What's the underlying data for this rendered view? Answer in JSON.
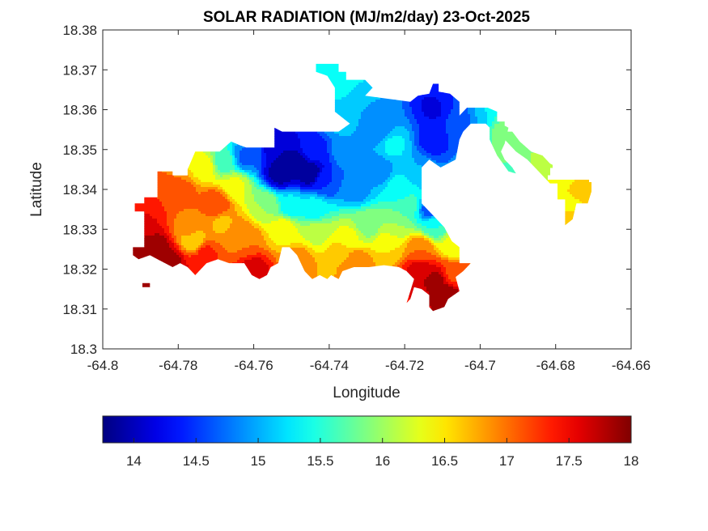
{
  "chart_data": {
    "type": "heatmap",
    "subtype": "filled-contour-map",
    "title": "SOLAR RADIATION (MJ/m2/day) 23-Oct-2025",
    "xlabel": "Longitude",
    "ylabel": "Latitude",
    "xlim": [
      -64.8,
      -64.66
    ],
    "ylim": [
      18.3,
      18.38
    ],
    "xticks": [
      -64.8,
      -64.78,
      -64.76,
      -64.74,
      -64.72,
      -64.7,
      -64.68,
      -64.66
    ],
    "xtick_labels": [
      "-64.8",
      "-64.78",
      "-64.76",
      "-64.74",
      "-64.72",
      "-64.7",
      "-64.68",
      "-64.66"
    ],
    "yticks": [
      18.3,
      18.31,
      18.32,
      18.33,
      18.34,
      18.35,
      18.36,
      18.37,
      18.38
    ],
    "ytick_labels": [
      "18.3",
      "18.31",
      "18.32",
      "18.33",
      "18.34",
      "18.35",
      "18.36",
      "18.37",
      "18.38"
    ],
    "grid": false,
    "colormap": "jet",
    "colorbar": {
      "placement": "bottom",
      "clim": [
        13.75,
        18
      ],
      "ticks": [
        14,
        14.5,
        15,
        15.5,
        16,
        16.5,
        17,
        17.5,
        18
      ],
      "tick_labels": [
        "14",
        "14.5",
        "15",
        "15.5",
        "16",
        "16.5",
        "17",
        "17.5",
        "18"
      ]
    },
    "contour_levels": 17,
    "land_mask_polygons": [
      {
        "name": "main-island",
        "lonlat": [
          [
            -64.792,
            18.3235
          ],
          [
            -64.792,
            18.3255
          ],
          [
            -64.789,
            18.3255
          ],
          [
            -64.789,
            18.3345
          ],
          [
            -64.7915,
            18.3345
          ],
          [
            -64.7915,
            18.3365
          ],
          [
            -64.789,
            18.3365
          ],
          [
            -64.789,
            18.338
          ],
          [
            -64.7855,
            18.338
          ],
          [
            -64.7855,
            18.3445
          ],
          [
            -64.7815,
            18.3445
          ],
          [
            -64.7815,
            18.3435
          ],
          [
            -64.7775,
            18.3435
          ],
          [
            -64.7775,
            18.345
          ],
          [
            -64.7755,
            18.3495
          ],
          [
            -64.769,
            18.3495
          ],
          [
            -64.766,
            18.352
          ],
          [
            -64.7635,
            18.351
          ],
          [
            -64.762,
            18.3505
          ],
          [
            -64.7545,
            18.3505
          ],
          [
            -64.7545,
            18.3555
          ],
          [
            -64.7525,
            18.3545
          ],
          [
            -64.7445,
            18.3545
          ],
          [
            -64.7375,
            18.3545
          ],
          [
            -64.7345,
            18.3565
          ],
          [
            -64.7385,
            18.3595
          ],
          [
            -64.7385,
            18.3655
          ],
          [
            -64.7405,
            18.3685
          ],
          [
            -64.7435,
            18.3695
          ],
          [
            -64.7435,
            18.3715
          ],
          [
            -64.7375,
            18.3715
          ],
          [
            -64.7375,
            18.3695
          ],
          [
            -64.7355,
            18.3695
          ],
          [
            -64.7355,
            18.3675
          ],
          [
            -64.7305,
            18.3675
          ],
          [
            -64.7285,
            18.3655
          ],
          [
            -64.7305,
            18.3635
          ],
          [
            -64.7185,
            18.362
          ],
          [
            -64.7165,
            18.3635
          ],
          [
            -64.7135,
            18.364
          ],
          [
            -64.7125,
            18.3665
          ],
          [
            -64.711,
            18.3665
          ],
          [
            -64.711,
            18.3645
          ],
          [
            -64.708,
            18.364
          ],
          [
            -64.7055,
            18.362
          ],
          [
            -64.7055,
            18.3585
          ],
          [
            -64.7035,
            18.3605
          ],
          [
            -64.698,
            18.3605
          ],
          [
            -64.6955,
            18.3595
          ],
          [
            -64.6955,
            18.357
          ],
          [
            -64.6935,
            18.357
          ],
          [
            -64.6935,
            18.3545
          ],
          [
            -64.6915,
            18.3545
          ],
          [
            -64.6895,
            18.352
          ],
          [
            -64.6865,
            18.3495
          ],
          [
            -64.6835,
            18.3485
          ],
          [
            -64.6815,
            18.3465
          ],
          [
            -64.6795,
            18.3455
          ],
          [
            -64.6745,
            18.3455
          ],
          [
            -64.6725,
            18.3475
          ],
          [
            -64.671,
            18.3475
          ],
          [
            -64.671,
            18.3455
          ],
          [
            -64.669,
            18.343
          ],
          [
            -64.6665,
            18.343
          ],
          [
            -64.6665,
            18.3395
          ],
          [
            -64.6705,
            18.3395
          ],
          [
            -64.6715,
            18.3365
          ],
          [
            -64.6745,
            18.3365
          ],
          [
            -64.6755,
            18.3325
          ],
          [
            -64.6775,
            18.331
          ],
          [
            -64.6775,
            18.3375
          ],
          [
            -64.6795,
            18.3375
          ],
          [
            -64.6795,
            18.3415
          ],
          [
            -64.6815,
            18.3415
          ],
          [
            -64.6845,
            18.3445
          ],
          [
            -64.6875,
            18.3475
          ],
          [
            -64.6905,
            18.3495
          ],
          [
            -64.6935,
            18.3525
          ],
          [
            -64.6965,
            18.3545
          ],
          [
            -64.6985,
            18.3565
          ],
          [
            -64.7025,
            18.3565
          ],
          [
            -64.7045,
            18.3545
          ],
          [
            -64.7055,
            18.3525
          ],
          [
            -64.7065,
            18.3475
          ],
          [
            -64.7105,
            18.3455
          ],
          [
            -64.7135,
            18.3475
          ],
          [
            -64.7155,
            18.3455
          ],
          [
            -64.7155,
            18.3365
          ],
          [
            -64.7135,
            18.3345
          ],
          [
            -64.7115,
            18.3325
          ],
          [
            -64.7095,
            18.3305
          ],
          [
            -64.7075,
            18.327
          ],
          [
            -64.7055,
            18.3255
          ],
          [
            -64.7055,
            18.3215
          ],
          [
            -64.7025,
            18.3215
          ],
          [
            -64.7045,
            18.3195
          ],
          [
            -64.7065,
            18.318
          ],
          [
            -64.7055,
            18.3145
          ],
          [
            -64.7085,
            18.3125
          ],
          [
            -64.7095,
            18.3105
          ],
          [
            -64.7125,
            18.3095
          ],
          [
            -64.7135,
            18.3105
          ],
          [
            -64.7135,
            18.3135
          ],
          [
            -64.7155,
            18.315
          ],
          [
            -64.7175,
            18.3155
          ],
          [
            -64.7185,
            18.3125
          ],
          [
            -64.7195,
            18.3115
          ],
          [
            -64.7175,
            18.3175
          ],
          [
            -64.7195,
            18.3195
          ],
          [
            -64.7215,
            18.3205
          ],
          [
            -64.7255,
            18.321
          ],
          [
            -64.7295,
            18.3205
          ],
          [
            -64.7335,
            18.3205
          ],
          [
            -64.7365,
            18.3195
          ],
          [
            -64.7375,
            18.3175
          ],
          [
            -64.7395,
            18.3185
          ],
          [
            -64.7405,
            18.3175
          ],
          [
            -64.7425,
            18.3185
          ],
          [
            -64.7445,
            18.3175
          ],
          [
            -64.7465,
            18.3195
          ],
          [
            -64.7485,
            18.3235
          ],
          [
            -64.7505,
            18.3255
          ],
          [
            -64.7525,
            18.3255
          ],
          [
            -64.7535,
            18.3215
          ],
          [
            -64.7555,
            18.3205
          ],
          [
            -64.7565,
            18.3185
          ],
          [
            -64.7585,
            18.3175
          ],
          [
            -64.7605,
            18.3185
          ],
          [
            -64.7625,
            18.3215
          ],
          [
            -64.7645,
            18.3215
          ],
          [
            -64.7665,
            18.3215
          ],
          [
            -64.7695,
            18.3225
          ],
          [
            -64.7725,
            18.3215
          ],
          [
            -64.7745,
            18.3195
          ],
          [
            -64.7755,
            18.3185
          ],
          [
            -64.7775,
            18.3205
          ],
          [
            -64.7795,
            18.3215
          ],
          [
            -64.7815,
            18.3205
          ],
          [
            -64.7835,
            18.3215
          ],
          [
            -64.7855,
            18.3225
          ],
          [
            -64.7875,
            18.3235
          ],
          [
            -64.7905,
            18.3225
          ]
        ]
      },
      {
        "name": "small-islet",
        "lonlat": [
          [
            -64.7895,
            18.3165
          ],
          [
            -64.7875,
            18.3165
          ],
          [
            -64.7875,
            18.3155
          ],
          [
            -64.7895,
            18.3155
          ]
        ]
      },
      {
        "name": "north-spur",
        "lonlat": [
          [
            -64.6955,
            18.357
          ],
          [
            -64.6925,
            18.3555
          ],
          [
            -64.6935,
            18.3515
          ],
          [
            -64.6945,
            18.3495
          ],
          [
            -64.6935,
            18.3475
          ],
          [
            -64.6915,
            18.3455
          ],
          [
            -64.6905,
            18.344
          ],
          [
            -64.6925,
            18.3445
          ],
          [
            -64.6955,
            18.3485
          ],
          [
            -64.6975,
            18.3525
          ],
          [
            -64.6975,
            18.356
          ]
        ]
      }
    ],
    "field_samples": [
      {
        "lon": -64.79,
        "lat": 18.322,
        "value": 18.0
      },
      {
        "lon": -64.786,
        "lat": 18.325,
        "value": 17.95
      },
      {
        "lon": -64.782,
        "lat": 18.322,
        "value": 17.85
      },
      {
        "lon": -64.789,
        "lat": 18.332,
        "value": 17.6
      },
      {
        "lon": -64.787,
        "lat": 18.336,
        "value": 17.3
      },
      {
        "lon": -64.783,
        "lat": 18.34,
        "value": 17.0
      },
      {
        "lon": -64.779,
        "lat": 18.339,
        "value": 17.1
      },
      {
        "lon": -64.777,
        "lat": 18.33,
        "value": 16.8
      },
      {
        "lon": -64.776,
        "lat": 18.327,
        "value": 16.55
      },
      {
        "lon": -64.773,
        "lat": 18.324,
        "value": 17.3
      },
      {
        "lon": -64.775,
        "lat": 18.3205,
        "value": 17.5
      },
      {
        "lon": -64.77,
        "lat": 18.3365,
        "value": 17.25
      },
      {
        "lon": -64.773,
        "lat": 18.3455,
        "value": 16.4
      },
      {
        "lon": -64.768,
        "lat": 18.331,
        "value": 16.7
      },
      {
        "lon": -64.765,
        "lat": 18.329,
        "value": 16.9
      },
      {
        "lon": -64.76,
        "lat": 18.32,
        "value": 17.6
      },
      {
        "lon": -64.762,
        "lat": 18.327,
        "value": 17.0
      },
      {
        "lon": -64.765,
        "lat": 18.341,
        "value": 16.3
      },
      {
        "lon": -64.768,
        "lat": 18.347,
        "value": 15.6
      },
      {
        "lon": -64.762,
        "lat": 18.348,
        "value": 14.7
      },
      {
        "lon": -64.757,
        "lat": 18.336,
        "value": 16.0
      },
      {
        "lon": -64.753,
        "lat": 18.344,
        "value": 13.9
      },
      {
        "lon": -64.749,
        "lat": 18.346,
        "value": 13.8
      },
      {
        "lon": -64.745,
        "lat": 18.344,
        "value": 13.85
      },
      {
        "lon": -64.753,
        "lat": 18.35,
        "value": 14.0
      },
      {
        "lon": -64.744,
        "lat": 18.35,
        "value": 14.4
      },
      {
        "lon": -64.741,
        "lat": 18.342,
        "value": 14.5
      },
      {
        "lon": -64.75,
        "lat": 18.336,
        "value": 15.3
      },
      {
        "lon": -64.744,
        "lat": 18.335,
        "value": 15.4
      },
      {
        "lon": -64.752,
        "lat": 18.33,
        "value": 16.4
      },
      {
        "lon": -64.743,
        "lat": 18.329,
        "value": 16.2
      },
      {
        "lon": -64.748,
        "lat": 18.322,
        "value": 16.9
      },
      {
        "lon": -64.737,
        "lat": 18.324,
        "value": 16.7
      },
      {
        "lon": -64.733,
        "lat": 18.3215,
        "value": 17.0
      },
      {
        "lon": -64.735,
        "lat": 18.328,
        "value": 16.3
      },
      {
        "lon": -64.73,
        "lat": 18.331,
        "value": 15.9
      },
      {
        "lon": -64.733,
        "lat": 18.34,
        "value": 14.9
      },
      {
        "lon": -64.735,
        "lat": 18.35,
        "value": 15.0
      },
      {
        "lon": -64.737,
        "lat": 18.358,
        "value": 15.1
      },
      {
        "lon": -64.739,
        "lat": 18.367,
        "value": 15.45
      },
      {
        "lon": -64.735,
        "lat": 18.37,
        "value": 15.5
      },
      {
        "lon": -64.73,
        "lat": 18.3625,
        "value": 15.0
      },
      {
        "lon": -64.727,
        "lat": 18.355,
        "value": 14.8
      },
      {
        "lon": -64.727,
        "lat": 18.345,
        "value": 14.85
      },
      {
        "lon": -64.723,
        "lat": 18.351,
        "value": 15.3
      },
      {
        "lon": -64.721,
        "lat": 18.34,
        "value": 15.4
      },
      {
        "lon": -64.719,
        "lat": 18.336,
        "value": 15.6
      },
      {
        "lon": -64.722,
        "lat": 18.331,
        "value": 16.0
      },
      {
        "lon": -64.724,
        "lat": 18.326,
        "value": 16.5
      },
      {
        "lon": -64.716,
        "lat": 18.325,
        "value": 17.0
      },
      {
        "lon": -64.716,
        "lat": 18.32,
        "value": 17.6
      },
      {
        "lon": -64.712,
        "lat": 18.317,
        "value": 17.85
      },
      {
        "lon": -64.709,
        "lat": 18.313,
        "value": 18.0
      },
      {
        "lon": -64.718,
        "lat": 18.313,
        "value": 17.5
      },
      {
        "lon": -64.707,
        "lat": 18.319,
        "value": 17.2
      },
      {
        "lon": -64.707,
        "lat": 18.326,
        "value": 16.3
      },
      {
        "lon": -64.712,
        "lat": 18.331,
        "value": 15.5
      },
      {
        "lon": -64.713,
        "lat": 18.335,
        "value": 14.6
      },
      {
        "lon": -64.7165,
        "lat": 18.345,
        "value": 15.0
      },
      {
        "lon": -64.7125,
        "lat": 18.352,
        "value": 14.4
      },
      {
        "lon": -64.712,
        "lat": 18.3605,
        "value": 14.2
      },
      {
        "lon": -64.708,
        "lat": 18.3615,
        "value": 14.5
      },
      {
        "lon": -64.705,
        "lat": 18.357,
        "value": 14.6
      },
      {
        "lon": -64.7,
        "lat": 18.358,
        "value": 15.0
      },
      {
        "lon": -64.6965,
        "lat": 18.359,
        "value": 15.5
      },
      {
        "lon": -64.694,
        "lat": 18.355,
        "value": 15.9
      },
      {
        "lon": -64.6935,
        "lat": 18.349,
        "value": 15.8
      },
      {
        "lon": -64.691,
        "lat": 18.3455,
        "value": 15.6
      },
      {
        "lon": -64.688,
        "lat": 18.348,
        "value": 16.0
      },
      {
        "lon": -64.684,
        "lat": 18.346,
        "value": 16.1
      },
      {
        "lon": -64.679,
        "lat": 18.344,
        "value": 16.35
      },
      {
        "lon": -64.673,
        "lat": 18.3455,
        "value": 16.4
      },
      {
        "lon": -64.673,
        "lat": 18.34,
        "value": 16.6
      },
      {
        "lon": -64.668,
        "lat": 18.341,
        "value": 16.4
      },
      {
        "lon": -64.676,
        "lat": 18.336,
        "value": 16.45
      },
      {
        "lon": -64.675,
        "lat": 18.333,
        "value": 16.6
      }
    ]
  }
}
